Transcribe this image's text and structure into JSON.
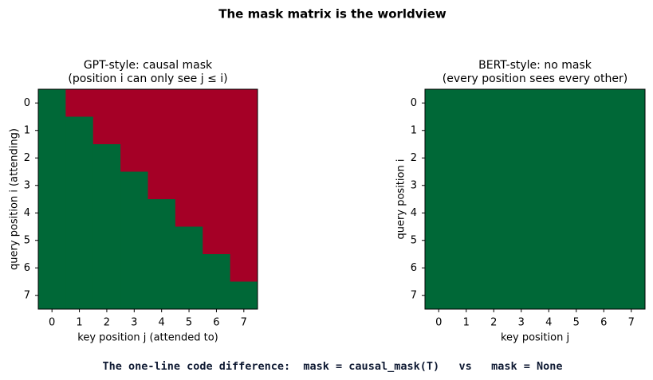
{
  "title": "The mask matrix is the worldview",
  "chart_data": [
    {
      "type": "heatmap",
      "title": "GPT-style: causal mask",
      "subtitle": "(position i can only see j ≤ i)",
      "x_label": "key position j (attended to)",
      "y_label": "query position i (attending)",
      "z": [
        [
          1,
          0,
          0,
          0,
          0,
          0,
          0,
          0
        ],
        [
          1,
          1,
          0,
          0,
          0,
          0,
          0,
          0
        ],
        [
          1,
          1,
          1,
          0,
          0,
          0,
          0,
          0
        ],
        [
          1,
          1,
          1,
          1,
          0,
          0,
          0,
          0
        ],
        [
          1,
          1,
          1,
          1,
          1,
          0,
          0,
          0
        ],
        [
          1,
          1,
          1,
          1,
          1,
          1,
          0,
          0
        ],
        [
          1,
          1,
          1,
          1,
          1,
          1,
          1,
          0
        ],
        [
          1,
          1,
          1,
          1,
          1,
          1,
          1,
          1
        ]
      ],
      "zlim": [
        0,
        1
      ],
      "color_low": "#a50026",
      "color_high": "#006837",
      "xlim": [
        -0.5,
        7.5
      ],
      "ylim": [
        7.5,
        -0.5
      ],
      "xticks": [
        0,
        1,
        2,
        3,
        4,
        5,
        6,
        7
      ],
      "yticks": [
        0,
        1,
        2,
        3,
        4,
        5,
        6,
        7
      ]
    },
    {
      "type": "heatmap",
      "title": "BERT-style: no mask",
      "subtitle": "(every position sees every other)",
      "x_label": "key position j",
      "y_label": "query position i",
      "z": [
        [
          1,
          1,
          1,
          1,
          1,
          1,
          1,
          1
        ],
        [
          1,
          1,
          1,
          1,
          1,
          1,
          1,
          1
        ],
        [
          1,
          1,
          1,
          1,
          1,
          1,
          1,
          1
        ],
        [
          1,
          1,
          1,
          1,
          1,
          1,
          1,
          1
        ],
        [
          1,
          1,
          1,
          1,
          1,
          1,
          1,
          1
        ],
        [
          1,
          1,
          1,
          1,
          1,
          1,
          1,
          1
        ],
        [
          1,
          1,
          1,
          1,
          1,
          1,
          1,
          1
        ],
        [
          1,
          1,
          1,
          1,
          1,
          1,
          1,
          1
        ]
      ],
      "zlim": [
        0,
        1
      ],
      "color_low": "#a50026",
      "color_high": "#006837",
      "xlim": [
        -0.5,
        7.5
      ],
      "ylim": [
        7.5,
        -0.5
      ],
      "xticks": [
        0,
        1,
        2,
        3,
        4,
        5,
        6,
        7
      ],
      "yticks": [
        0,
        1,
        2,
        3,
        4,
        5,
        6,
        7
      ]
    }
  ],
  "footer": "The one-line code difference:  mask = causal_mask(T)   vs   mask = None"
}
